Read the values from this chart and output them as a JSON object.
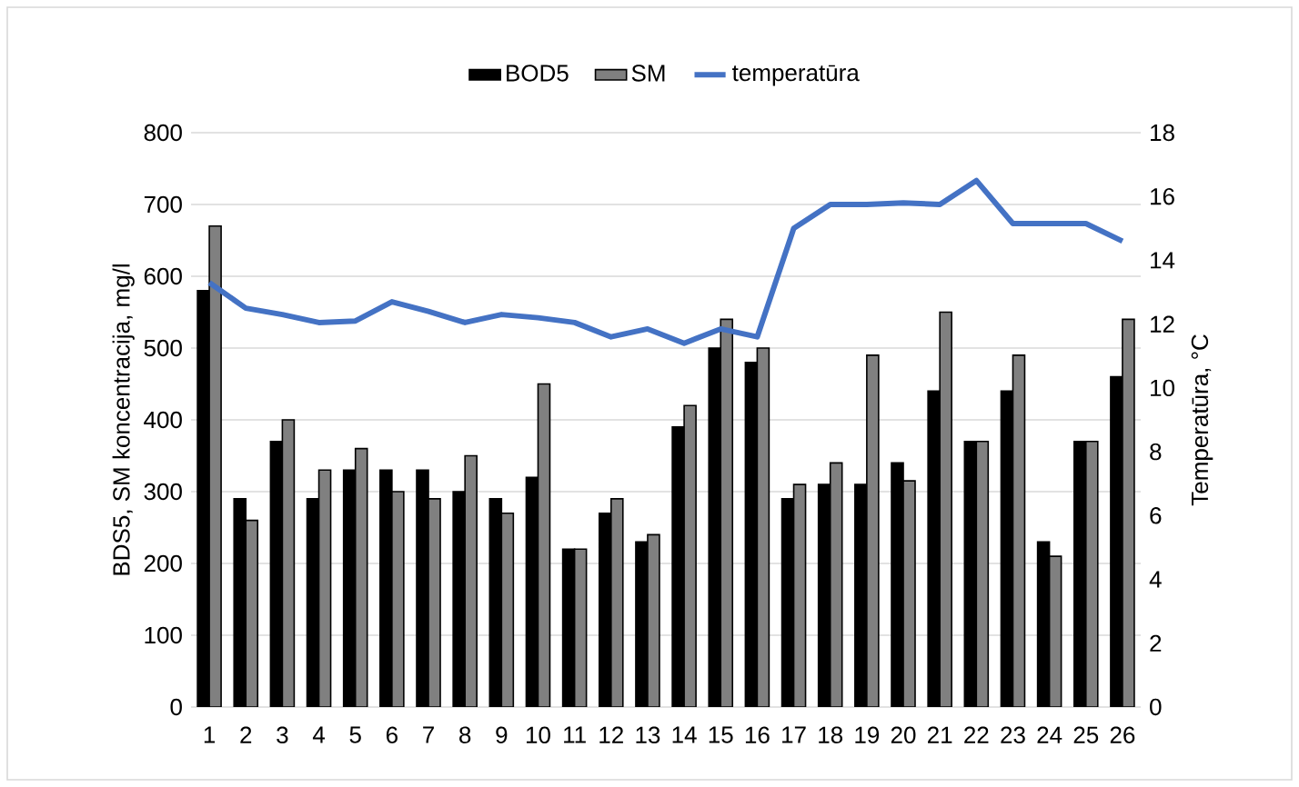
{
  "chart_data": {
    "type": "bar",
    "categories": [
      "1",
      "2",
      "3",
      "4",
      "5",
      "6",
      "7",
      "8",
      "9",
      "10",
      "11",
      "12",
      "13",
      "14",
      "15",
      "16",
      "17",
      "18",
      "19",
      "20",
      "21",
      "22",
      "23",
      "24",
      "25",
      "26"
    ],
    "series": [
      {
        "name": "BOD5",
        "color": "#000000",
        "values": [
          580,
          290,
          370,
          290,
          330,
          330,
          330,
          300,
          290,
          320,
          220,
          270,
          230,
          390,
          500,
          480,
          290,
          310,
          310,
          340,
          440,
          370,
          440,
          230,
          370,
          460
        ]
      },
      {
        "name": "SM",
        "color": "#808080",
        "values": [
          670,
          260,
          400,
          330,
          360,
          300,
          290,
          350,
          270,
          450,
          220,
          290,
          240,
          420,
          540,
          500,
          310,
          340,
          490,
          315,
          550,
          370,
          490,
          210,
          370,
          540
        ]
      },
      {
        "name": "temperatūra",
        "type": "line",
        "axis": "y2",
        "color": "#4472c4",
        "values": [
          13.3,
          12.5,
          12.3,
          12.05,
          12.1,
          12.7,
          12.4,
          12.05,
          12.3,
          12.2,
          12.05,
          11.6,
          11.85,
          11.4,
          11.85,
          11.6,
          15.0,
          15.75,
          15.75,
          15.8,
          15.75,
          16.5,
          15.15,
          15.15,
          15.15,
          14.6
        ]
      }
    ],
    "ylabel": "BDS5, SM koncentracija, mg/l",
    "y2label": "Temperatūra, °C",
    "ylim": [
      0,
      800
    ],
    "yticks": [
      0,
      100,
      200,
      300,
      400,
      500,
      600,
      700,
      800
    ],
    "y2lim": [
      0,
      18
    ],
    "y2ticks": [
      0,
      2,
      4,
      6,
      8,
      10,
      12,
      14,
      16,
      18
    ],
    "grid": "y",
    "legend": "top",
    "line_style": "solid"
  }
}
